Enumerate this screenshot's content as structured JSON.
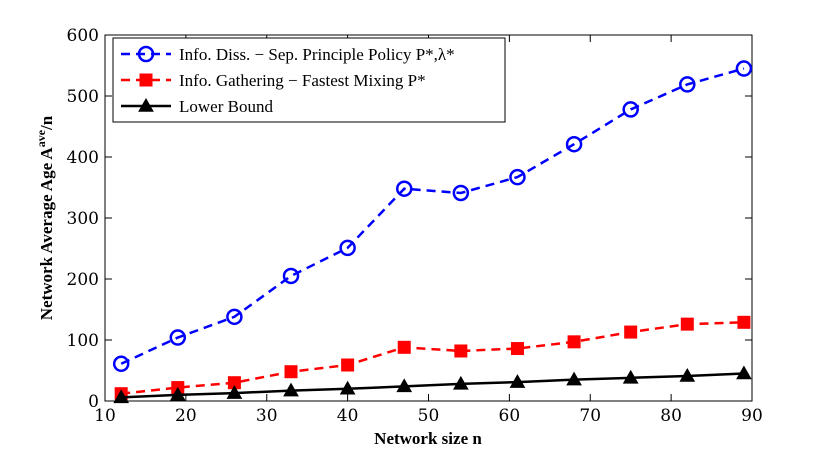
{
  "chart_data": {
    "type": "line",
    "title": "",
    "xlabel": "Network size n",
    "ylabel": {
      "prefix": "Network Average Age A",
      "superscript": "ave",
      "suffix": "/n"
    },
    "xlim": [
      10,
      90
    ],
    "ylim": [
      0,
      600
    ],
    "xticks": [
      10,
      20,
      30,
      40,
      50,
      60,
      70,
      80,
      90
    ],
    "yticks": [
      0,
      100,
      200,
      300,
      400,
      500,
      600
    ],
    "grid": false,
    "legend_position": "top-left",
    "x": [
      12,
      19,
      26,
      33,
      40,
      47,
      54,
      61,
      68,
      75,
      82,
      89
    ],
    "series": [
      {
        "name": "Info. Diss. − Sep. Principle Policy P*,λ*",
        "color": "#0000ff",
        "line_style": "dashed",
        "marker": "circle",
        "values": [
          61,
          104,
          138,
          205,
          251,
          348,
          341,
          367,
          421,
          478,
          519,
          545
        ]
      },
      {
        "name": "Info. Gathering − Fastest Mixing P*",
        "color": "#ff0000",
        "line_style": "dashed",
        "marker": "square",
        "values": [
          12,
          22,
          30,
          48,
          59,
          88,
          82,
          86,
          97,
          113,
          126,
          129
        ]
      },
      {
        "name": "Lower Bound",
        "color": "#000000",
        "line_style": "solid",
        "marker": "triangle",
        "values": [
          6,
          10,
          13,
          17,
          20,
          24,
          28,
          31,
          35,
          38,
          41,
          45
        ]
      }
    ]
  }
}
